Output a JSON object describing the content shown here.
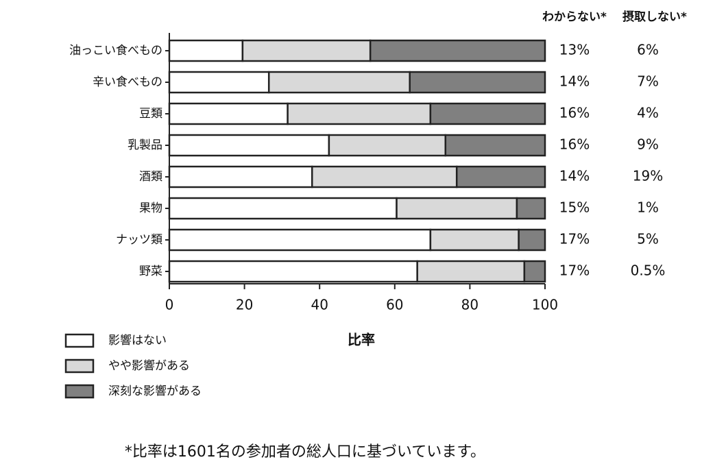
{
  "chart_data": {
    "type": "stacked-barh",
    "xlabel": "比率",
    "categories": [
      "油っこい食べもの",
      "辛い食べもの",
      "豆類",
      "乳製品",
      "酒類",
      "果物",
      "ナッツ類",
      "野菜"
    ],
    "series": [
      {
        "name": "影響はない",
        "color": "#ffffff",
        "values": [
          19.5,
          26.5,
          31.5,
          42.5,
          38,
          60.5,
          69.5,
          66
        ]
      },
      {
        "name": "やや影響がある",
        "color": "#d9d9d9",
        "values": [
          34,
          37.5,
          38,
          31,
          38.5,
          32,
          23.5,
          28.5
        ]
      },
      {
        "name": "深刻な影響がある",
        "color": "#808080",
        "values": [
          46.5,
          36,
          30.5,
          26.5,
          23.5,
          7.5,
          7,
          5.5
        ]
      }
    ],
    "xlim": [
      0,
      100
    ],
    "xticks": [
      0,
      20,
      40,
      60,
      80,
      100
    ],
    "columns": [
      {
        "name": "わからない*",
        "labels": [
          "13%",
          "14%",
          "16%",
          "16%",
          "14%",
          "15%",
          "17%",
          "17%"
        ]
      },
      {
        "name": "摂取しない*",
        "labels": [
          "6%",
          "7%",
          "4%",
          "9%",
          "19%",
          "1%",
          "5%",
          "0.5%"
        ]
      }
    ],
    "footnote": "*比率は1601名の参加者の総人口に基づいています。"
  }
}
